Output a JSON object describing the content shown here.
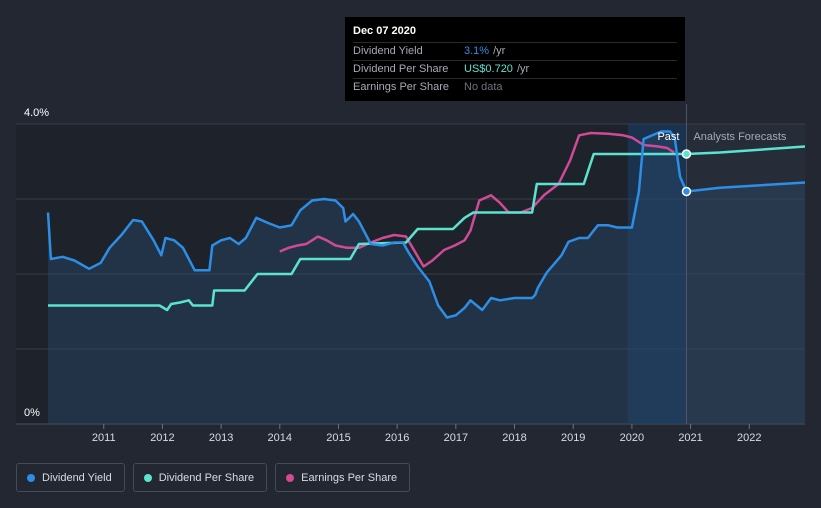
{
  "chart_data": {
    "type": "line",
    "y_axis": {
      "ticks": [
        "4.0%",
        "0%"
      ],
      "ylim": [
        0,
        4.0
      ],
      "unit": "%"
    },
    "x_axis": {
      "range": [
        2010.05,
        2022.95
      ],
      "ticks": [
        "2011",
        "2012",
        "2013",
        "2014",
        "2015",
        "2016",
        "2017",
        "2018",
        "2019",
        "2020",
        "2021",
        "2022"
      ]
    },
    "past_boundary": 2020.93,
    "forecast_band_start": 2019.93,
    "region_labels": {
      "past": "Past",
      "forecast": "Analysts Forecasts"
    },
    "grid": true,
    "series": [
      {
        "name": "Dividend Yield",
        "color": "#2d8ee6",
        "axis": "percent",
        "points": [
          [
            2010.05,
            2.82
          ],
          [
            2010.1,
            2.2
          ],
          [
            2010.3,
            2.23
          ],
          [
            2010.5,
            2.18
          ],
          [
            2010.75,
            2.07
          ],
          [
            2010.95,
            2.15
          ],
          [
            2011.1,
            2.35
          ],
          [
            2011.3,
            2.52
          ],
          [
            2011.5,
            2.72
          ],
          [
            2011.65,
            2.7
          ],
          [
            2011.85,
            2.45
          ],
          [
            2011.98,
            2.25
          ],
          [
            2012.05,
            2.48
          ],
          [
            2012.2,
            2.45
          ],
          [
            2012.35,
            2.35
          ],
          [
            2012.55,
            2.05
          ],
          [
            2012.7,
            2.05
          ],
          [
            2012.8,
            2.05
          ],
          [
            2012.85,
            2.38
          ],
          [
            2013.0,
            2.45
          ],
          [
            2013.15,
            2.48
          ],
          [
            2013.3,
            2.4
          ],
          [
            2013.42,
            2.48
          ],
          [
            2013.6,
            2.75
          ],
          [
            2013.8,
            2.68
          ],
          [
            2014.0,
            2.62
          ],
          [
            2014.2,
            2.65
          ],
          [
            2014.35,
            2.85
          ],
          [
            2014.55,
            2.98
          ],
          [
            2014.75,
            3.0
          ],
          [
            2014.95,
            2.98
          ],
          [
            2015.08,
            2.88
          ],
          [
            2015.12,
            2.7
          ],
          [
            2015.25,
            2.8
          ],
          [
            2015.35,
            2.7
          ],
          [
            2015.55,
            2.4
          ],
          [
            2015.75,
            2.38
          ],
          [
            2015.95,
            2.42
          ],
          [
            2016.1,
            2.42
          ],
          [
            2016.2,
            2.28
          ],
          [
            2016.35,
            2.1
          ],
          [
            2016.55,
            1.9
          ],
          [
            2016.7,
            1.58
          ],
          [
            2016.85,
            1.42
          ],
          [
            2017.0,
            1.45
          ],
          [
            2017.15,
            1.55
          ],
          [
            2017.25,
            1.65
          ],
          [
            2017.45,
            1.52
          ],
          [
            2017.6,
            1.68
          ],
          [
            2017.75,
            1.65
          ],
          [
            2018.0,
            1.68
          ],
          [
            2018.3,
            1.68
          ],
          [
            2018.35,
            1.72
          ],
          [
            2018.4,
            1.82
          ],
          [
            2018.55,
            2.02
          ],
          [
            2018.8,
            2.25
          ],
          [
            2018.92,
            2.43
          ],
          [
            2019.1,
            2.48
          ],
          [
            2019.25,
            2.48
          ],
          [
            2019.35,
            2.58
          ],
          [
            2019.42,
            2.65
          ],
          [
            2019.6,
            2.65
          ],
          [
            2019.75,
            2.62
          ],
          [
            2019.9,
            2.62
          ],
          [
            2020.0,
            2.62
          ],
          [
            2020.12,
            3.1
          ],
          [
            2020.2,
            3.8
          ],
          [
            2020.5,
            3.9
          ],
          [
            2020.65,
            3.9
          ],
          [
            2020.73,
            3.82
          ],
          [
            2020.82,
            3.3
          ],
          [
            2020.93,
            3.1
          ],
          [
            2021.5,
            3.15
          ],
          [
            2022.95,
            3.22
          ]
        ]
      },
      {
        "name": "Dividend Per Share",
        "color": "#5be3cf",
        "axis": "dps",
        "points": [
          [
            2010.05,
            1.58
          ],
          [
            2011.5,
            1.58
          ],
          [
            2011.95,
            1.58
          ],
          [
            2012.08,
            1.52
          ],
          [
            2012.15,
            1.6
          ],
          [
            2012.3,
            1.62
          ],
          [
            2012.45,
            1.65
          ],
          [
            2012.52,
            1.58
          ],
          [
            2012.85,
            1.58
          ],
          [
            2012.88,
            1.78
          ],
          [
            2013.4,
            1.78
          ],
          [
            2013.62,
            2.0
          ],
          [
            2014.2,
            2.0
          ],
          [
            2014.35,
            2.2
          ],
          [
            2015.2,
            2.2
          ],
          [
            2015.35,
            2.4
          ],
          [
            2016.15,
            2.42
          ],
          [
            2016.35,
            2.6
          ],
          [
            2016.95,
            2.6
          ],
          [
            2017.15,
            2.75
          ],
          [
            2017.3,
            2.82
          ],
          [
            2017.7,
            2.82
          ],
          [
            2018.3,
            2.82
          ],
          [
            2018.38,
            3.2
          ],
          [
            2019.18,
            3.2
          ],
          [
            2019.35,
            3.6
          ],
          [
            2020.0,
            3.6
          ],
          [
            2020.93,
            3.6
          ],
          [
            2021.5,
            3.62
          ],
          [
            2022.95,
            3.7
          ]
        ]
      },
      {
        "name": "Earnings Per Share",
        "color": "#d14a96",
        "axis": "eps",
        "points": [
          [
            2014.0,
            2.3
          ],
          [
            2014.15,
            2.35
          ],
          [
            2014.3,
            2.38
          ],
          [
            2014.45,
            2.4
          ],
          [
            2014.55,
            2.45
          ],
          [
            2014.65,
            2.5
          ],
          [
            2014.8,
            2.45
          ],
          [
            2014.95,
            2.38
          ],
          [
            2015.15,
            2.35
          ],
          [
            2015.35,
            2.35
          ],
          [
            2015.55,
            2.42
          ],
          [
            2015.75,
            2.48
          ],
          [
            2015.95,
            2.52
          ],
          [
            2016.15,
            2.5
          ],
          [
            2016.3,
            2.3
          ],
          [
            2016.45,
            2.1
          ],
          [
            2016.6,
            2.18
          ],
          [
            2016.8,
            2.32
          ],
          [
            2016.98,
            2.38
          ],
          [
            2017.15,
            2.45
          ],
          [
            2017.25,
            2.58
          ],
          [
            2017.4,
            2.98
          ],
          [
            2017.6,
            3.05
          ],
          [
            2017.75,
            2.95
          ],
          [
            2017.9,
            2.82
          ],
          [
            2018.1,
            2.82
          ],
          [
            2018.3,
            2.88
          ],
          [
            2018.5,
            3.05
          ],
          [
            2018.75,
            3.2
          ],
          [
            2018.95,
            3.52
          ],
          [
            2019.1,
            3.85
          ],
          [
            2019.3,
            3.88
          ],
          [
            2019.6,
            3.87
          ],
          [
            2019.85,
            3.85
          ],
          [
            2020.0,
            3.82
          ],
          [
            2020.08,
            3.78
          ],
          [
            2020.2,
            3.72
          ],
          [
            2020.45,
            3.7
          ],
          [
            2020.6,
            3.68
          ],
          [
            2020.72,
            3.62
          ]
        ]
      }
    ],
    "markers": [
      {
        "series": "Dividend Per Share",
        "x": 2020.93,
        "y": 3.6,
        "color": "#5be3cf"
      },
      {
        "series": "Dividend Yield",
        "x": 2020.93,
        "y": 3.1,
        "color": "#2d8ee6"
      }
    ]
  },
  "tooltip": {
    "date": "Dec 07 2020",
    "rows": [
      {
        "name": "Dividend Yield",
        "value": "3.1%",
        "unit": "/yr",
        "color": "#2d8ee6"
      },
      {
        "name": "Dividend Per Share",
        "value": "US$0.720",
        "unit": "/yr",
        "color": "#5be3cf"
      },
      {
        "name": "Earnings Per Share",
        "value": "No data",
        "unit": "",
        "color": "#6d727b"
      }
    ]
  },
  "legend": [
    {
      "label": "Dividend Yield",
      "color": "#2d8ee6"
    },
    {
      "label": "Dividend Per Share",
      "color": "#5be3cf"
    },
    {
      "label": "Earnings Per Share",
      "color": "#d14a96"
    }
  ]
}
